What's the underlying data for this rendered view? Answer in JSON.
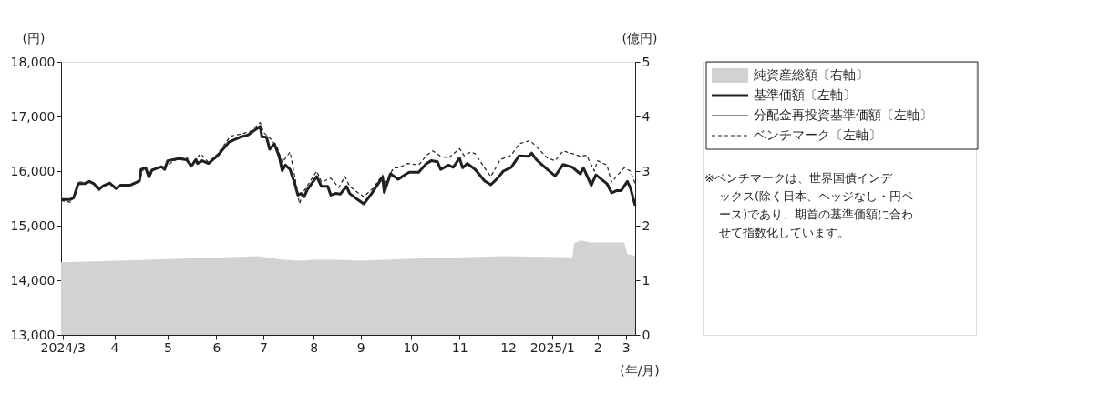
{
  "chart_data": {
    "type": "line",
    "xlabel": "(年/月)",
    "ylabel": "(円)",
    "y2label": "(億円)",
    "xlim": [
      "2024-03-16",
      "2025-03-17"
    ],
    "xticks": [
      {
        "value": "2024-03-17",
        "label": "2024/3"
      },
      {
        "value": "2024-04-19",
        "label": "4"
      },
      {
        "value": "2024-05-23",
        "label": "5"
      },
      {
        "value": "2024-06-23",
        "label": "6"
      },
      {
        "value": "2024-07-23",
        "label": "7"
      },
      {
        "value": "2024-08-24",
        "label": "8"
      },
      {
        "value": "2024-09-23",
        "label": "9"
      },
      {
        "value": "2024-10-25",
        "label": "10"
      },
      {
        "value": "2024-11-25",
        "label": "11"
      },
      {
        "value": "2024-12-26",
        "label": "12"
      },
      {
        "value": "2025-01-23",
        "label": "2025/1"
      },
      {
        "value": "2025-02-21",
        "label": "2"
      },
      {
        "value": "2025-03-11",
        "label": "3"
      }
    ],
    "ylim": [
      13000,
      18000
    ],
    "yticks": [
      {
        "value": 13000,
        "label": "13,000"
      },
      {
        "value": 14000,
        "label": "14,000"
      },
      {
        "value": 15000,
        "label": "15,000"
      },
      {
        "value": 16000,
        "label": "16,000"
      },
      {
        "value": 17000,
        "label": "17,000"
      },
      {
        "value": 18000,
        "label": "18,000"
      }
    ],
    "y2lim": [
      0,
      5
    ],
    "y2ticks": [
      0,
      1,
      2,
      3,
      4,
      5
    ],
    "grid": false,
    "legend": "right",
    "marker": "none",
    "series": [
      {
        "name": "純資産総額〔右軸〕",
        "type": "area",
        "axis": "y2",
        "color": "#d1d2d4",
        "x": [
          "2024-03-16",
          "2024-05-06",
          "2024-07-20",
          "2024-08-03",
          "2024-08-15",
          "2024-08-26",
          "2024-09-14",
          "2024-09-23",
          "2024-10-31",
          "2024-12-23",
          "2025-02-05",
          "2025-02-06",
          "2025-02-10",
          "2025-02-17",
          "2025-03-10",
          "2025-03-12",
          "2025-03-17"
        ],
        "values": [
          1.33,
          1.37,
          1.44,
          1.38,
          1.36,
          1.38,
          1.37,
          1.36,
          1.4,
          1.44,
          1.42,
          1.67,
          1.73,
          1.69,
          1.69,
          1.48,
          1.45
        ]
      },
      {
        "name": "基準価額〔左軸〕",
        "line_style": "solid",
        "color": "#231f20",
        "x": [
          "2024-03-16",
          "2024-03-22",
          "2024-03-24",
          "2024-03-27",
          "2024-03-31",
          "2024-04-03",
          "2024-04-06",
          "2024-04-09",
          "2024-04-12",
          "2024-04-16",
          "2024-04-20",
          "2024-04-23",
          "2024-04-29",
          "2024-05-05",
          "2024-05-06",
          "2024-05-09",
          "2024-05-11",
          "2024-05-13",
          "2024-05-19",
          "2024-05-21",
          "2024-05-23",
          "2024-05-30",
          "2024-06-04",
          "2024-06-07",
          "2024-06-10",
          "2024-06-11",
          "2024-06-14",
          "2024-06-18",
          "2024-06-24",
          "2024-07-01",
          "2024-07-08",
          "2024-07-13",
          "2024-07-17",
          "2024-07-21",
          "2024-07-22",
          "2024-07-25",
          "2024-07-27",
          "2024-07-30",
          "2024-08-02",
          "2024-08-04",
          "2024-08-06",
          "2024-08-09",
          "2024-08-12",
          "2024-08-14",
          "2024-08-16",
          "2024-08-18",
          "2024-08-20",
          "2024-08-26",
          "2024-08-29",
          "2024-09-02",
          "2024-09-04",
          "2024-09-07",
          "2024-09-10",
          "2024-09-14",
          "2024-09-16",
          "2024-09-21",
          "2024-09-25",
          "2024-09-30",
          "2024-10-07",
          "2024-10-08",
          "2024-10-12",
          "2024-10-17",
          "2024-10-21",
          "2024-10-24",
          "2024-10-30",
          "2024-11-04",
          "2024-11-07",
          "2024-11-11",
          "2024-11-13",
          "2024-11-18",
          "2024-11-21",
          "2024-11-25",
          "2024-11-27",
          "2024-11-30",
          "2024-12-05",
          "2024-12-11",
          "2024-12-15",
          "2024-12-19",
          "2024-12-23",
          "2024-12-28",
          "2025-01-02",
          "2025-01-08",
          "2025-01-10",
          "2025-01-13",
          "2025-01-20",
          "2025-01-25",
          "2025-01-30",
          "2025-02-05",
          "2025-02-10",
          "2025-02-12",
          "2025-02-17",
          "2025-02-20",
          "2025-02-27",
          "2025-03-02",
          "2025-03-05",
          "2025-03-08",
          "2025-03-12",
          "2025-03-14",
          "2025-03-17"
        ],
        "values": [
          15480,
          15480,
          15510,
          15770,
          15770,
          15810,
          15770,
          15660,
          15730,
          15780,
          15680,
          15740,
          15740,
          15820,
          16030,
          16060,
          15890,
          16020,
          16080,
          16030,
          16190,
          16230,
          16210,
          16090,
          16210,
          16140,
          16190,
          16140,
          16290,
          16530,
          16620,
          16660,
          16740,
          16820,
          16630,
          16620,
          16400,
          16500,
          16270,
          16010,
          16110,
          16030,
          15770,
          15560,
          15590,
          15530,
          15660,
          15900,
          15720,
          15720,
          15560,
          15590,
          15580,
          15720,
          15590,
          15480,
          15400,
          15590,
          15890,
          15610,
          15950,
          15850,
          15930,
          15980,
          15980,
          16140,
          16190,
          16170,
          16030,
          16110,
          16070,
          16240,
          16060,
          16140,
          16030,
          15820,
          15750,
          15860,
          16000,
          16070,
          16280,
          16270,
          16330,
          16210,
          16030,
          15910,
          16120,
          16070,
          15950,
          16060,
          15740,
          15930,
          15770,
          15600,
          15640,
          15640,
          15810,
          15690,
          15370
        ]
      },
      {
        "name": "分配金再投資基準価額〔左軸〕",
        "line_style": "solid",
        "color": "#231f20"
      },
      {
        "name": "ベンチマーク〔左軸〕",
        "line_style": "dashed",
        "color": "#231f20",
        "x": [
          "2024-03-16",
          "2024-03-22",
          "2024-03-24",
          "2024-03-27",
          "2024-03-31",
          "2024-04-06",
          "2024-04-09",
          "2024-04-16",
          "2024-04-20",
          "2024-04-29",
          "2024-05-05",
          "2024-05-08",
          "2024-05-11",
          "2024-05-13",
          "2024-05-21",
          "2024-05-30",
          "2024-06-04",
          "2024-06-07",
          "2024-06-13",
          "2024-06-18",
          "2024-06-24",
          "2024-07-02",
          "2024-07-09",
          "2024-07-15",
          "2024-07-21",
          "2024-07-23",
          "2024-07-28",
          "2024-08-01",
          "2024-08-04",
          "2024-08-09",
          "2024-08-12",
          "2024-08-15",
          "2024-08-18",
          "2024-08-26",
          "2024-08-29",
          "2024-09-04",
          "2024-09-09",
          "2024-09-13",
          "2024-09-16",
          "2024-09-21",
          "2024-09-25",
          "2024-10-01",
          "2024-10-07",
          "2024-10-08",
          "2024-10-14",
          "2024-10-17",
          "2024-10-23",
          "2024-10-30",
          "2024-11-04",
          "2024-11-08",
          "2024-11-13",
          "2024-11-18",
          "2024-11-25",
          "2024-11-28",
          "2024-12-02",
          "2024-12-05",
          "2024-12-11",
          "2024-12-15",
          "2024-12-21",
          "2024-12-28",
          "2025-01-02",
          "2025-01-09",
          "2025-01-13",
          "2025-01-20",
          "2025-01-25",
          "2025-01-30",
          "2025-02-05",
          "2025-02-10",
          "2025-02-14",
          "2025-02-19",
          "2025-02-21",
          "2025-02-27",
          "2025-03-02",
          "2025-03-10",
          "2025-03-14",
          "2025-03-17"
        ],
        "values": [
          15460,
          15430,
          15530,
          15800,
          15800,
          15770,
          15680,
          15780,
          15700,
          15750,
          15830,
          16080,
          15930,
          16030,
          16080,
          16240,
          16260,
          16120,
          16320,
          16160,
          16320,
          16640,
          16680,
          16730,
          16890,
          16710,
          16580,
          16420,
          16160,
          16350,
          15900,
          15400,
          15640,
          16000,
          15800,
          15870,
          15700,
          15900,
          15720,
          15610,
          15530,
          15690,
          15930,
          15740,
          16060,
          16060,
          16140,
          16110,
          16290,
          16370,
          16270,
          16240,
          16410,
          16280,
          16350,
          16320,
          16060,
          15900,
          16210,
          16290,
          16500,
          16560,
          16450,
          16240,
          16190,
          16370,
          16320,
          16270,
          16290,
          16000,
          16190,
          16110,
          15800,
          16060,
          16000,
          15770
        ]
      }
    ],
    "annotations": [
      "※ベンチマークは、世界国債インデックス(除く日本、ヘッジなし・円ベース)であり、期首の基準価額に合わせて指数化しています。"
    ]
  }
}
